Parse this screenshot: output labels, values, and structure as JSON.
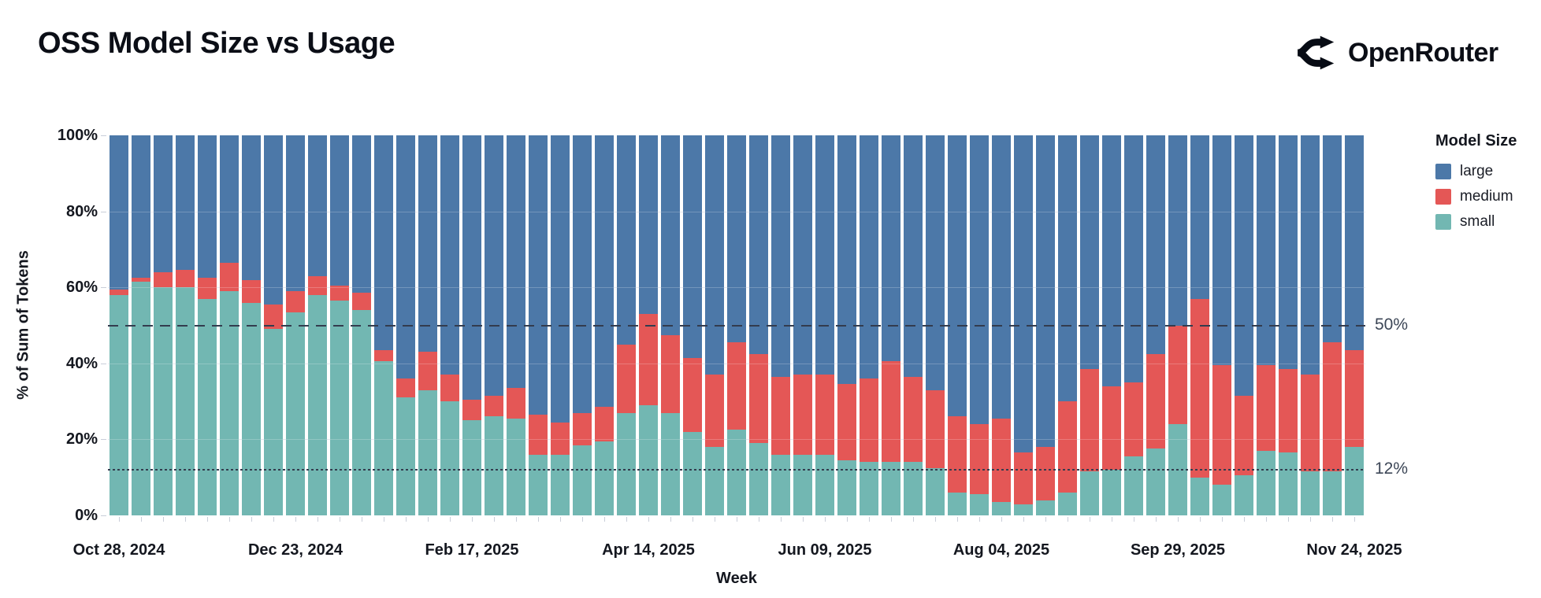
{
  "header": {
    "title": "OSS Model Size vs Usage",
    "brand": "OpenRouter"
  },
  "annotations": {
    "line_50": "50%",
    "line_12": "12%"
  },
  "chart_data": {
    "type": "bar",
    "stacked": true,
    "title": "OSS Model Size vs Usage",
    "x_axis_title": "Week",
    "y_axis_title": "% of Sum of Tokens",
    "ylim": [
      0,
      100
    ],
    "n_bars": 57,
    "x_ticks": [
      {
        "index": 0,
        "label": "Oct 28, 2024"
      },
      {
        "index": 8,
        "label": "Dec 23, 2024"
      },
      {
        "index": 16,
        "label": "Feb 17, 2025"
      },
      {
        "index": 24,
        "label": "Apr 14, 2025"
      },
      {
        "index": 32,
        "label": "Jun 09, 2025"
      },
      {
        "index": 40,
        "label": "Aug 04, 2025"
      },
      {
        "index": 48,
        "label": "Sep 29, 2025"
      },
      {
        "index": 56,
        "label": "Nov 24, 2025"
      }
    ],
    "y_ticks": [
      {
        "value": 0,
        "label": "0%"
      },
      {
        "value": 20,
        "label": "20%"
      },
      {
        "value": 40,
        "label": "40%"
      },
      {
        "value": 60,
        "label": "60%"
      },
      {
        "value": 80,
        "label": "80%"
      },
      {
        "value": 100,
        "label": "100%"
      }
    ],
    "series": [
      {
        "name": "small",
        "color": "#72b7b2",
        "values": [
          58,
          61.5,
          60,
          60,
          57,
          59,
          56,
          49,
          53.5,
          58,
          56.5,
          54,
          40.5,
          31,
          33,
          30,
          25,
          26,
          25.5,
          16,
          16,
          18.5,
          19.5,
          27,
          29,
          27,
          22,
          18,
          22.5,
          19,
          16,
          16,
          16,
          14.5,
          14,
          14,
          14,
          12.5,
          6,
          5.5,
          3.5,
          3,
          4,
          6,
          11.5,
          12,
          15.5,
          17.5,
          24,
          10,
          8,
          10.5,
          17,
          16.5,
          11.5,
          11.5,
          18
        ]
      },
      {
        "name": "medium",
        "color": "#e45756",
        "values": [
          1.5,
          1,
          4,
          4.5,
          5.5,
          7.5,
          6,
          6.5,
          5.5,
          5,
          4,
          4.5,
          3,
          5,
          10,
          7,
          5.5,
          5.5,
          8,
          10.5,
          8.5,
          8.5,
          9,
          18,
          24,
          20.5,
          19.5,
          19,
          23,
          23.5,
          20.5,
          21,
          21,
          20,
          22,
          26.5,
          22.5,
          20.5,
          20,
          18.5,
          22,
          13.5,
          14,
          24,
          27,
          22,
          19.5,
          25,
          26,
          47,
          31.5,
          21,
          22.5,
          22,
          25.5,
          34,
          25.5
        ]
      },
      {
        "name": "large",
        "color": "#4c78a8",
        "values": [
          40.5,
          37.5,
          36,
          35.5,
          37.5,
          33.5,
          38,
          44.5,
          41,
          37,
          39.5,
          41.5,
          56.5,
          64,
          57,
          63,
          69.5,
          68.5,
          66.5,
          73.5,
          75.5,
          73,
          71.5,
          55,
          47,
          52.5,
          58.5,
          63,
          54.5,
          57.5,
          63.5,
          63,
          63,
          65.5,
          64,
          59.5,
          63.5,
          67,
          74,
          76,
          74.5,
          83.5,
          82,
          70,
          61.5,
          66,
          65,
          57.5,
          50,
          43,
          60.5,
          68.5,
          60.5,
          61.5,
          63,
          54.5,
          56.5
        ]
      }
    ],
    "stack_order_bottom_to_top": [
      "small",
      "medium",
      "large"
    ],
    "reference_lines": [
      {
        "value": 50,
        "label": "50%",
        "style": "dashed"
      },
      {
        "value": 12,
        "label": "12%",
        "style": "dotted"
      }
    ],
    "legend": {
      "title": "Model Size",
      "position": "right",
      "items": [
        {
          "label": "large",
          "color": "#4c78a8"
        },
        {
          "label": "medium",
          "color": "#e45756"
        },
        {
          "label": "small",
          "color": "#72b7b2"
        }
      ]
    }
  }
}
